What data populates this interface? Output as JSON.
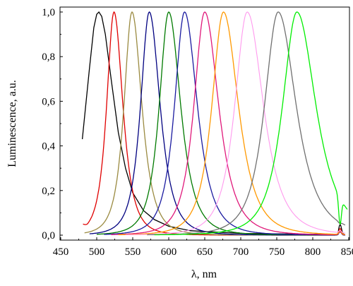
{
  "chart_data": {
    "type": "line",
    "xlabel": "λ, nm",
    "ylabel": "Luminescence, a.u.",
    "xlim": [
      450,
      850
    ],
    "ylim": [
      0,
      1.0
    ],
    "x_ticks": [
      450,
      500,
      550,
      600,
      650,
      700,
      750,
      800,
      850
    ],
    "x_tick_labels": [
      "450",
      "500",
      "550",
      "600",
      "650",
      "700",
      "750",
      "800",
      "850"
    ],
    "y_ticks": [
      0.0,
      0.2,
      0.4,
      0.6,
      0.8,
      1.0
    ],
    "y_tick_labels": [
      "0,0",
      "0,2",
      "0,4",
      "0,6",
      "0,8",
      "1,0"
    ],
    "grid": false,
    "series": [
      {
        "color": "#000000",
        "peak_x": 503,
        "x_start": 480,
        "x_end": 845,
        "y_at_start": 0.43,
        "side_peak_y": 0.045,
        "x": [
          480,
          490,
          496,
          500,
          503,
          507,
          512,
          520,
          530,
          540,
          550,
          565,
          580,
          600,
          630,
          700,
          800,
          835
        ],
        "y": [
          0.43,
          0.75,
          0.93,
          0.99,
          1.0,
          0.98,
          0.9,
          0.7,
          0.46,
          0.3,
          0.19,
          0.11,
          0.07,
          0.04,
          0.02,
          0.008,
          0.004,
          0.003
        ]
      },
      {
        "color": "#e00000",
        "peak_x": 524,
        "x_start": 481,
        "x_end": 845,
        "y_at_start": 0.05,
        "side_peak_y": 0.03
      },
      {
        "color": "#9a8a40",
        "peak_x": 549,
        "x_start": 483,
        "x_end": 845,
        "y_at_start": 0.01,
        "side_peak_y": 0.02
      },
      {
        "color": "#000080",
        "peak_x": 573,
        "x_start": 490,
        "x_end": 845,
        "y_at_start": 0.0,
        "side_peak_y": 0.015
      },
      {
        "color": "#007a00",
        "peak_x": 600,
        "x_start": 500,
        "x_end": 845,
        "y_at_start": 0.0,
        "side_peak_y": 0.015
      },
      {
        "color": "#1a1aa0",
        "peak_x": 622,
        "x_start": 510,
        "x_end": 845,
        "y_at_start": 0.0,
        "side_peak_y": 0.02
      },
      {
        "color": "#e0187a",
        "peak_x": 650,
        "x_start": 520,
        "x_end": 845,
        "y_at_start": 0.0,
        "side_peak_y": 0.015
      },
      {
        "color": "#ff9900",
        "peak_x": 676,
        "x_start": 530,
        "x_end": 845,
        "y_at_start": 0.0,
        "side_peak_y": 0.02
      },
      {
        "color": "#ff99ee",
        "peak_x": 709,
        "x_start": 540,
        "x_end": 845,
        "y_at_start": 0.0,
        "side_peak_y": 0.02
      },
      {
        "color": "#707070",
        "peak_x": 752,
        "x_start": 570,
        "x_end": 845,
        "y_at_start": 0.0,
        "side_peak_y": 0.05
      },
      {
        "color": "#00ee00",
        "peak_x": 778,
        "x_start": 580,
        "x_end": 848,
        "y_at_start": 0.0,
        "side_peak_y": 0.04
      }
    ]
  }
}
